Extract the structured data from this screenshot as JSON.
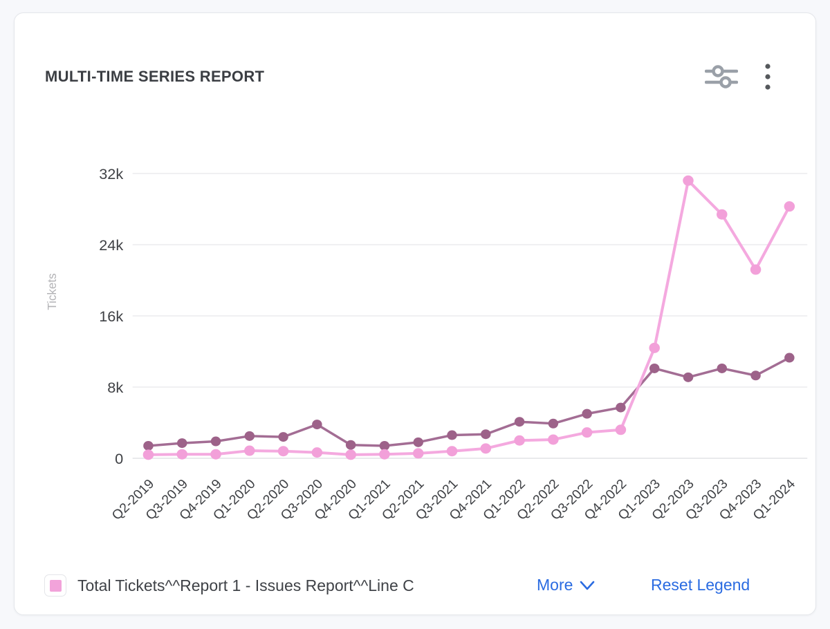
{
  "header": {
    "title": "MULTI-TIME SERIES REPORT",
    "icons": [
      "sliders-icon",
      "kebab-menu-icon"
    ]
  },
  "colors": {
    "accent_blue": "#2a6be1",
    "pink_series": "#f4a9df",
    "pink_point": "#f2a0d9",
    "dark_series": "#a36d94",
    "dark_point": "#9d6289",
    "grid": "#ebebee",
    "zero_line": "#e2e3e6",
    "tick_text": "#3f4145",
    "axis_name_text": "#b3b3b6",
    "icon_gray": "#9aa0a8",
    "kebab_gray": "#55585c"
  },
  "legend": {
    "items": [
      {
        "label": "Total Tickets^^Report 1 - Issues Report^^Line C",
        "swatch_color": "#f2a3da"
      }
    ],
    "more_label": "More",
    "reset_label": "Reset Legend"
  },
  "chart_data": {
    "type": "line",
    "title": "MULTI-TIME SERIES REPORT",
    "xlabel": "",
    "ylabel": "Tickets",
    "ylim": [
      0,
      32000
    ],
    "grid": true,
    "legend_position": "bottom",
    "y_ticks": {
      "labels": [
        "0",
        "8k",
        "16k",
        "24k",
        "32k"
      ],
      "values": [
        0,
        8000,
        16000,
        24000,
        32000
      ]
    },
    "categories": [
      "Q2-2019",
      "Q3-2019",
      "Q4-2019",
      "Q1-2020",
      "Q2-2020",
      "Q3-2020",
      "Q4-2020",
      "Q1-2021",
      "Q2-2021",
      "Q3-2021",
      "Q4-2021",
      "Q1-2022",
      "Q2-2022",
      "Q3-2022",
      "Q4-2022",
      "Q1-2023",
      "Q2-2023",
      "Q3-2023",
      "Q4-2023",
      "Q1-2024"
    ],
    "series": [
      {
        "name": "",
        "color": "#a36d94",
        "point_color": "#9d6289",
        "values": [
          1400,
          1700,
          1900,
          2500,
          2400,
          3800,
          1500,
          1400,
          1800,
          2600,
          2700,
          4100,
          3900,
          5000,
          5700,
          10100,
          9100,
          10100,
          9300,
          11300
        ]
      },
      {
        "name": "Total Tickets^^Report 1 - Issues Report^^Line C",
        "color": "#f4a9df",
        "point_color": "#f2a0d9",
        "values": [
          400,
          450,
          450,
          850,
          800,
          650,
          400,
          450,
          550,
          800,
          1100,
          2000,
          2100,
          2900,
          3200,
          12400,
          31200,
          27400,
          21200,
          28300
        ]
      }
    ]
  }
}
